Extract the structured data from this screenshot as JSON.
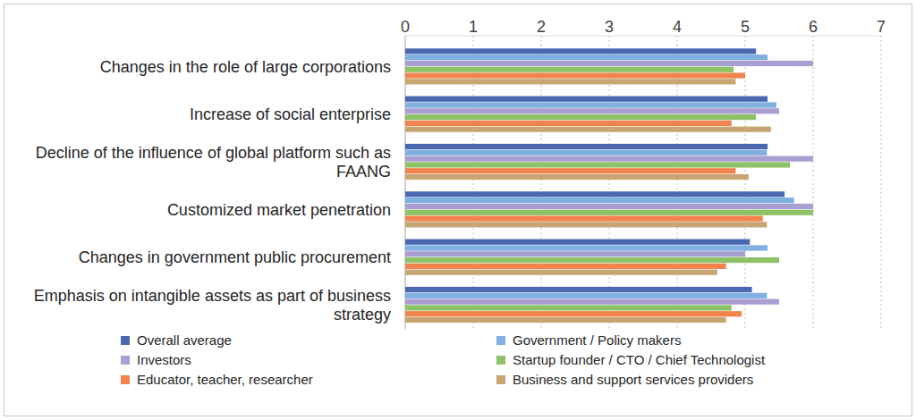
{
  "chart_data": {
    "type": "bar",
    "orientation": "horizontal",
    "grid": true,
    "legend": "bottom",
    "categories": [
      "Changes in the role of large corporations",
      "Increase of social enterprise",
      "Decline of the influence of global platform such as FAANG",
      "Customized market penetration",
      "Changes in government public procurement",
      "Emphasis on intangible assets as part of business strategy"
    ],
    "xlim": [
      0,
      7
    ],
    "xticks": [
      0,
      1,
      2,
      3,
      4,
      5,
      6,
      7
    ],
    "series": [
      {
        "name": "Overall average",
        "color": "#4a67b0",
        "values": [
          5.16,
          5.33,
          5.33,
          5.58,
          5.07,
          5.1
        ]
      },
      {
        "name": "Government / Policy makers",
        "color": "#7fb0e0",
        "values": [
          5.33,
          5.46,
          5.32,
          5.72,
          5.33,
          5.32
        ]
      },
      {
        "name": "Investors",
        "color": "#a99fd2",
        "values": [
          6.0,
          5.5,
          6.0,
          6.0,
          5.0,
          5.5
        ]
      },
      {
        "name": "Startup founder / CTO / Chief Technologist",
        "color": "#8dc266",
        "values": [
          4.83,
          5.16,
          5.66,
          6.0,
          5.5,
          4.8
        ]
      },
      {
        "name": "Educator, teacher, researcher",
        "color": "#f0834e",
        "values": [
          5.0,
          4.8,
          4.86,
          5.26,
          4.72,
          4.95
        ]
      },
      {
        "name": "Business and support services providers",
        "color": "#c8a673",
        "values": [
          4.86,
          5.38,
          5.05,
          5.32,
          4.59,
          4.72
        ]
      }
    ]
  }
}
